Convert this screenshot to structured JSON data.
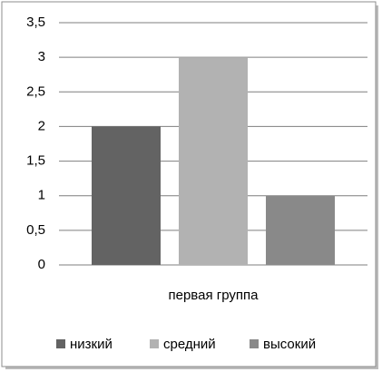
{
  "chart_data": {
    "type": "bar",
    "categories": [
      "первая группа"
    ],
    "series": [
      {
        "name": "низкий",
        "color": "#636363",
        "values": [
          2
        ]
      },
      {
        "name": "средний",
        "color": "#b2b2b2",
        "values": [
          3
        ]
      },
      {
        "name": "высокий",
        "color": "#898989",
        "values": [
          1
        ]
      }
    ],
    "ylim": [
      0,
      3.5
    ],
    "yticks": [
      0,
      {
        "value": 0.5,
        "label": "0,5"
      },
      1,
      {
        "value": 1.5,
        "label": "1,5"
      },
      2,
      {
        "value": 2.5,
        "label": "2,5"
      },
      3,
      {
        "value": 3.5,
        "label": "3,5"
      }
    ],
    "grid": true,
    "legend": "bottom"
  }
}
